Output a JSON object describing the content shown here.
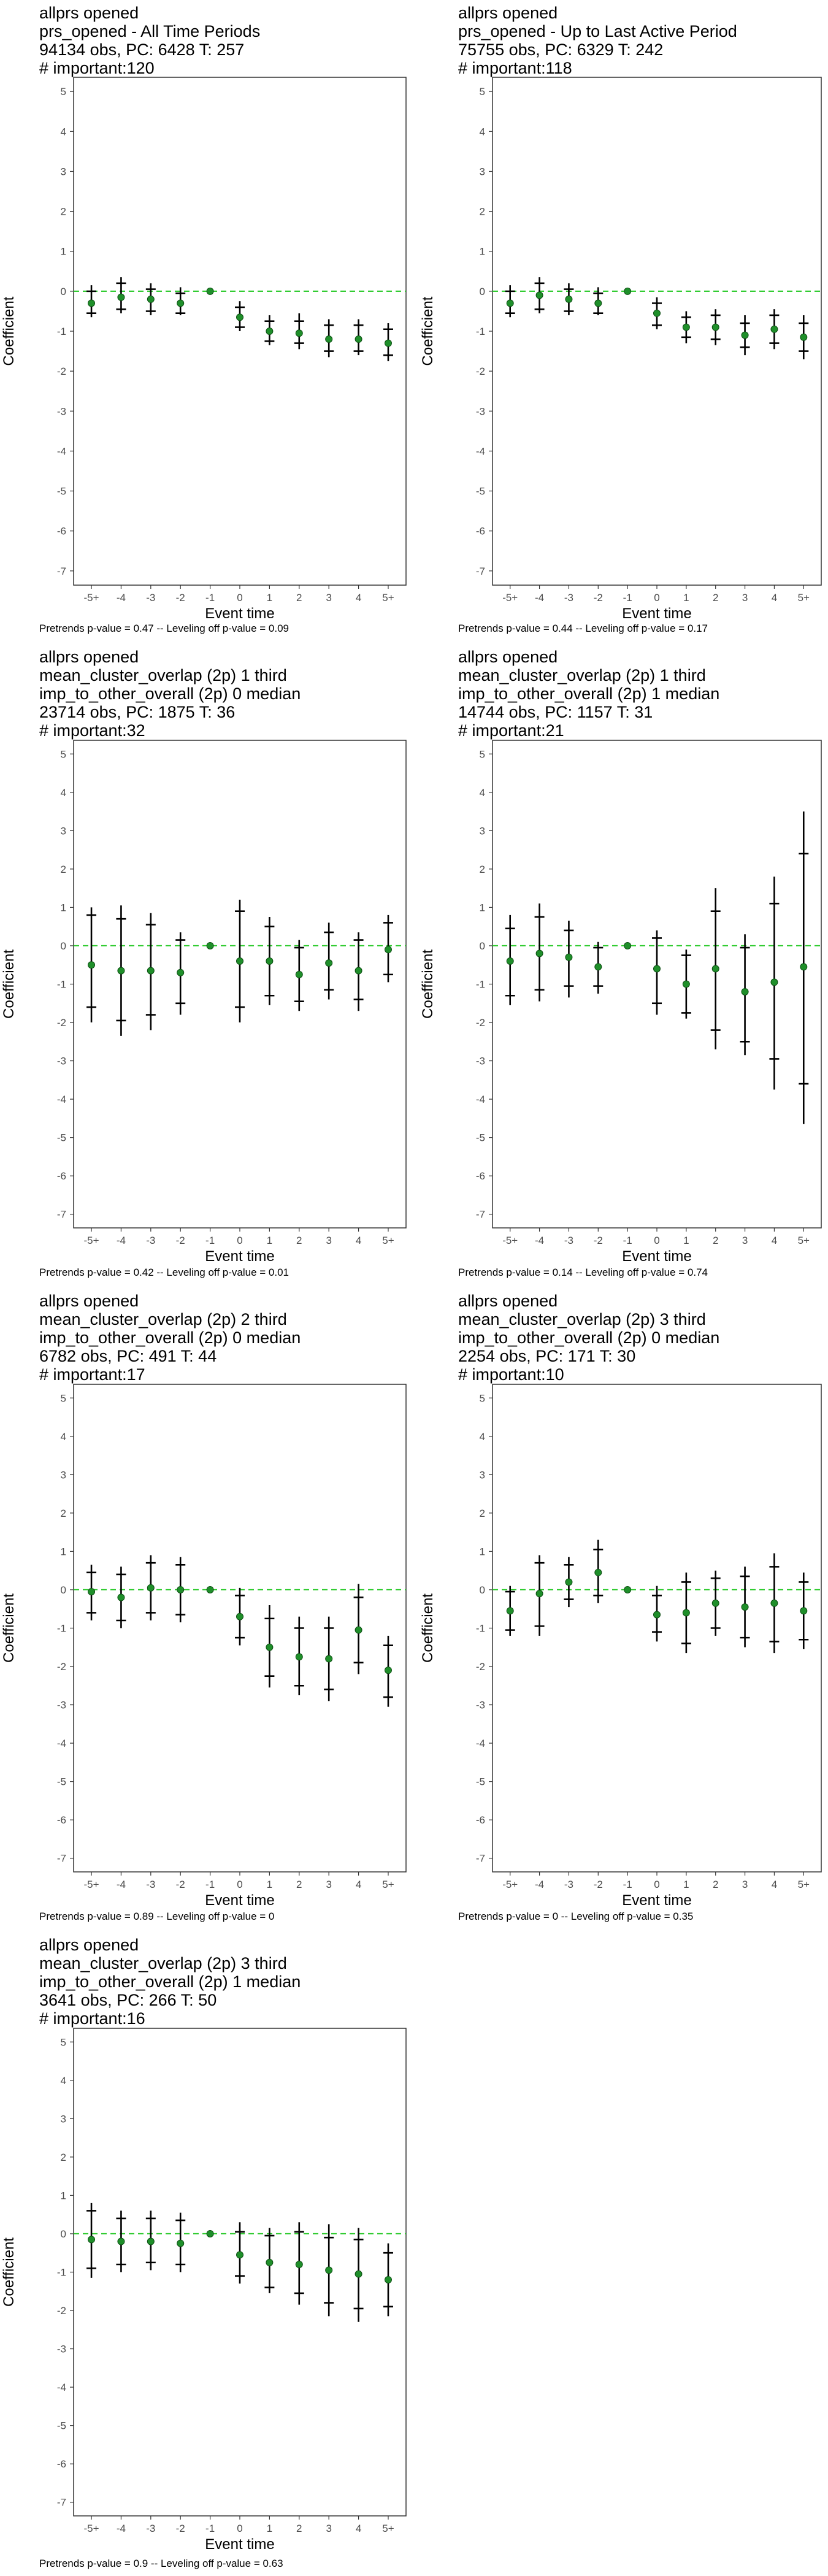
{
  "colors": {
    "point": "#1f8f2a",
    "ci_line": "#000000",
    "zero_line": "#33cc33",
    "panel_border": "#333333",
    "tick_text": "#4d4d4d"
  },
  "chart_data": [
    {
      "type": "scatter",
      "title": [
        " allprs opened",
        "prs_opened - All Time Periods",
        "94134 obs, PC: 6428 T: 257",
        "# important:120"
      ],
      "xlabel": "Event time",
      "ylabel": "Coefficient",
      "categories": [
        "-5+",
        "-4",
        "-3",
        "-2",
        "-1",
        "0",
        "1",
        "2",
        "3",
        "4",
        "5+"
      ],
      "yticks": [
        5,
        4,
        3,
        2,
        1,
        0,
        -1,
        -2,
        -3,
        -4,
        -5,
        -6,
        -7
      ],
      "ylim": [
        -7,
        5
      ],
      "reference_line": 0,
      "estimate": [
        -0.3,
        -0.15,
        -0.2,
        -0.3,
        0,
        -0.65,
        -1.0,
        -1.05,
        -1.2,
        -1.2,
        -1.3
      ],
      "ci_outer_low": [
        -0.65,
        -0.55,
        -0.6,
        -0.6,
        0,
        -1.0,
        -1.35,
        -1.45,
        -1.65,
        -1.6,
        -1.75
      ],
      "ci_outer_high": [
        0.15,
        0.35,
        0.2,
        0.1,
        0,
        -0.25,
        -0.6,
        -0.55,
        -0.7,
        -0.7,
        -0.8
      ],
      "ci_inner_low": [
        -0.55,
        -0.45,
        -0.5,
        -0.55,
        0,
        -0.9,
        -1.25,
        -1.3,
        -1.5,
        -1.5,
        -1.6
      ],
      "ci_inner_high": [
        0.0,
        0.2,
        0.05,
        -0.05,
        0,
        -0.4,
        -0.75,
        -0.75,
        -0.85,
        -0.85,
        -0.95
      ],
      "footer": {
        "prefix": "Pretrends p-value = ",
        "pretrends": "0.47",
        "middle": " -- Leveling off p-value = ",
        "leveling": "0.09"
      }
    },
    {
      "type": "scatter",
      "title": [
        " allprs opened",
        "prs_opened - Up to Last Active Period",
        "75755 obs, PC: 6329 T: 242",
        "# important:118"
      ],
      "xlabel": "Event time",
      "ylabel": "Coefficient",
      "categories": [
        "-5+",
        "-4",
        "-3",
        "-2",
        "-1",
        "0",
        "1",
        "2",
        "3",
        "4",
        "5+"
      ],
      "yticks": [
        5,
        4,
        3,
        2,
        1,
        0,
        -1,
        -2,
        -3,
        -4,
        -5,
        -6,
        -7
      ],
      "ylim": [
        -7,
        5
      ],
      "reference_line": 0,
      "estimate": [
        -0.3,
        -0.1,
        -0.2,
        -0.3,
        0,
        -0.55,
        -0.9,
        -0.9,
        -1.1,
        -0.95,
        -1.15
      ],
      "ci_outer_low": [
        -0.65,
        -0.55,
        -0.6,
        -0.6,
        0,
        -0.95,
        -1.3,
        -1.35,
        -1.6,
        -1.45,
        -1.7
      ],
      "ci_outer_high": [
        0.15,
        0.35,
        0.2,
        0.1,
        0,
        -0.15,
        -0.5,
        -0.45,
        -0.6,
        -0.45,
        -0.6
      ],
      "ci_inner_low": [
        -0.55,
        -0.45,
        -0.5,
        -0.55,
        0,
        -0.85,
        -1.15,
        -1.2,
        -1.4,
        -1.3,
        -1.5
      ],
      "ci_inner_high": [
        0.0,
        0.2,
        0.05,
        -0.05,
        0,
        -0.3,
        -0.65,
        -0.6,
        -0.8,
        -0.6,
        -0.8
      ],
      "footer": {
        "prefix": "Pretrends p-value = ",
        "pretrends": "0.44",
        "middle": " -- Leveling off p-value = ",
        "leveling": "0.17"
      }
    },
    {
      "type": "scatter",
      "title": [
        " allprs opened",
        "mean_cluster_overlap (2p) 1 third",
        "imp_to_other_overall (2p) 0 median",
        "23714 obs, PC: 1875 T: 36",
        "# important:32"
      ],
      "xlabel": "Event time",
      "ylabel": "Coefficient",
      "categories": [
        "-5+",
        "-4",
        "-3",
        "-2",
        "-1",
        "0",
        "1",
        "2",
        "3",
        "4",
        "5+"
      ],
      "yticks": [
        5,
        4,
        3,
        2,
        1,
        0,
        -1,
        -2,
        -3,
        -4,
        -5,
        -6,
        -7
      ],
      "ylim": [
        -7,
        5
      ],
      "reference_line": 0,
      "estimate": [
        -0.5,
        -0.65,
        -0.65,
        -0.7,
        0,
        -0.4,
        -0.4,
        -0.75,
        -0.45,
        -0.65,
        -0.1
      ],
      "ci_outer_low": [
        -2.0,
        -2.35,
        -2.2,
        -1.8,
        0,
        -2.0,
        -1.55,
        -1.7,
        -1.4,
        -1.7,
        -0.95
      ],
      "ci_outer_high": [
        1.0,
        1.05,
        0.85,
        0.35,
        0,
        1.2,
        0.75,
        0.15,
        0.6,
        0.35,
        0.8
      ],
      "ci_inner_low": [
        -1.6,
        -1.95,
        -1.8,
        -1.5,
        0,
        -1.6,
        -1.3,
        -1.45,
        -1.15,
        -1.4,
        -0.75
      ],
      "ci_inner_high": [
        0.8,
        0.7,
        0.55,
        0.15,
        0,
        0.9,
        0.5,
        -0.05,
        0.35,
        0.15,
        0.6
      ],
      "footer": {
        "prefix": "Pretrends p-value = ",
        "pretrends": "0.42",
        "middle": " -- Leveling off p-value = ",
        "leveling": "0.01"
      }
    },
    {
      "type": "scatter",
      "title": [
        " allprs opened",
        "mean_cluster_overlap (2p) 1 third",
        "imp_to_other_overall (2p) 1 median",
        "14744 obs, PC: 1157 T: 31",
        "# important:21"
      ],
      "xlabel": "Event time",
      "ylabel": "Coefficient",
      "categories": [
        "-5+",
        "-4",
        "-3",
        "-2",
        "-1",
        "0",
        "1",
        "2",
        "3",
        "4",
        "5+"
      ],
      "yticks": [
        5,
        4,
        3,
        2,
        1,
        0,
        -1,
        -2,
        -3,
        -4,
        -5,
        -6,
        -7
      ],
      "ylim": [
        -7,
        5
      ],
      "reference_line": 0,
      "estimate": [
        -0.4,
        -0.2,
        -0.3,
        -0.55,
        0,
        -0.6,
        -1.0,
        -0.6,
        -1.2,
        -0.95,
        -0.55
      ],
      "ci_outer_low": [
        -1.55,
        -1.45,
        -1.35,
        -1.25,
        0,
        -1.8,
        -1.9,
        -2.7,
        -2.85,
        -3.75,
        -4.65
      ],
      "ci_outer_high": [
        0.8,
        1.1,
        0.65,
        0.1,
        0,
        0.4,
        -0.1,
        1.5,
        0.3,
        1.8,
        3.5
      ],
      "ci_inner_low": [
        -1.3,
        -1.15,
        -1.05,
        -1.05,
        0,
        -1.5,
        -1.75,
        -2.2,
        -2.5,
        -2.95,
        -3.6
      ],
      "ci_inner_high": [
        0.45,
        0.75,
        0.4,
        -0.05,
        0,
        0.2,
        -0.25,
        0.9,
        -0.05,
        1.1,
        2.4
      ],
      "footer": {
        "prefix": "Pretrends p-value = ",
        "pretrends": "0.14",
        "middle": " -- Leveling off p-value = ",
        "leveling": "0.74"
      }
    },
    {
      "type": "scatter",
      "title": [
        " allprs opened",
        "mean_cluster_overlap (2p) 2 third",
        "imp_to_other_overall (2p) 0 median",
        "6782 obs, PC: 491 T: 44",
        "# important:17"
      ],
      "xlabel": "Event time",
      "ylabel": "Coefficient",
      "categories": [
        "-5+",
        "-4",
        "-3",
        "-2",
        "-1",
        "0",
        "1",
        "2",
        "3",
        "4",
        "5+"
      ],
      "yticks": [
        5,
        4,
        3,
        2,
        1,
        0,
        -1,
        -2,
        -3,
        -4,
        -5,
        -6,
        -7
      ],
      "ylim": [
        -7,
        5
      ],
      "reference_line": 0,
      "estimate": [
        -0.05,
        -0.2,
        0.05,
        0.0,
        0,
        -0.7,
        -1.5,
        -1.75,
        -1.8,
        -1.05,
        -2.1
      ],
      "ci_outer_low": [
        -0.8,
        -1.0,
        -0.8,
        -0.85,
        0,
        -1.45,
        -2.55,
        -2.75,
        -2.9,
        -2.2,
        -3.05
      ],
      "ci_outer_high": [
        0.65,
        0.6,
        0.9,
        0.85,
        0,
        0.05,
        -0.4,
        -0.7,
        -0.7,
        0.15,
        -1.2
      ],
      "ci_inner_low": [
        -0.6,
        -0.8,
        -0.6,
        -0.65,
        0,
        -1.25,
        -2.25,
        -2.5,
        -2.6,
        -1.9,
        -2.8
      ],
      "ci_inner_high": [
        0.45,
        0.4,
        0.7,
        0.65,
        0,
        -0.15,
        -0.75,
        -1.0,
        -1.0,
        -0.2,
        -1.45
      ],
      "footer": {
        "prefix": "Pretrends p-value = ",
        "pretrends": "0.89",
        "middle": " -- Leveling off p-value = ",
        "leveling": "0"
      }
    },
    {
      "type": "scatter",
      "title": [
        " allprs opened",
        "mean_cluster_overlap (2p) 3 third",
        "imp_to_other_overall (2p) 0 median",
        "2254 obs, PC: 171 T: 30",
        "# important:10"
      ],
      "xlabel": "Event time",
      "ylabel": "Coefficient",
      "categories": [
        "-5+",
        "-4",
        "-3",
        "-2",
        "-1",
        "0",
        "1",
        "2",
        "3",
        "4",
        "5+"
      ],
      "yticks": [
        5,
        4,
        3,
        2,
        1,
        0,
        -1,
        -2,
        -3,
        -4,
        -5,
        -6,
        -7
      ],
      "ylim": [
        -7,
        5
      ],
      "reference_line": 0,
      "estimate": [
        -0.55,
        -0.1,
        0.2,
        0.45,
        0,
        -0.65,
        -0.6,
        -0.35,
        -0.45,
        -0.35,
        -0.55
      ],
      "ci_outer_low": [
        -1.2,
        -1.2,
        -0.45,
        -0.35,
        0,
        -1.35,
        -1.65,
        -1.2,
        -1.5,
        -1.65,
        -1.55
      ],
      "ci_outer_high": [
        0.1,
        0.9,
        0.85,
        1.3,
        0,
        0.1,
        0.45,
        0.5,
        0.6,
        0.95,
        0.45
      ],
      "ci_inner_low": [
        -1.05,
        -0.95,
        -0.25,
        -0.15,
        0,
        -1.1,
        -1.4,
        -1.0,
        -1.25,
        -1.35,
        -1.3
      ],
      "ci_inner_high": [
        -0.05,
        0.7,
        0.65,
        1.05,
        0,
        -0.15,
        0.2,
        0.3,
        0.35,
        0.6,
        0.2
      ],
      "footer": {
        "prefix": "Pretrends p-value = ",
        "pretrends": "0",
        "middle": " -- Leveling off p-value = ",
        "leveling": "0.35"
      }
    },
    {
      "type": "scatter",
      "title": [
        " allprs opened",
        "mean_cluster_overlap (2p) 3 third",
        "imp_to_other_overall (2p) 1 median",
        "3641 obs, PC: 266 T: 50",
        "# important:16"
      ],
      "xlabel": "Event time",
      "ylabel": "Coefficient",
      "categories": [
        "-5+",
        "-4",
        "-3",
        "-2",
        "-1",
        "0",
        "1",
        "2",
        "3",
        "4",
        "5+"
      ],
      "yticks": [
        5,
        4,
        3,
        2,
        1,
        0,
        -1,
        -2,
        -3,
        -4,
        -5,
        -6,
        -7
      ],
      "ylim": [
        -7,
        5
      ],
      "reference_line": 0,
      "estimate": [
        -0.15,
        -0.2,
        -0.2,
        -0.25,
        0,
        -0.55,
        -0.75,
        -0.8,
        -0.95,
        -1.05,
        -1.2
      ],
      "ci_outer_low": [
        -1.15,
        -1.0,
        -0.95,
        -1.0,
        0,
        -1.3,
        -1.55,
        -1.85,
        -2.15,
        -2.3,
        -2.15
      ],
      "ci_outer_high": [
        0.8,
        0.6,
        0.6,
        0.55,
        0,
        0.3,
        0.15,
        0.3,
        0.25,
        0.15,
        -0.25
      ],
      "ci_inner_low": [
        -0.9,
        -0.8,
        -0.75,
        -0.8,
        0,
        -1.1,
        -1.4,
        -1.55,
        -1.8,
        -1.95,
        -1.9
      ],
      "ci_inner_high": [
        0.6,
        0.4,
        0.4,
        0.35,
        0,
        0.05,
        -0.05,
        0.05,
        -0.1,
        -0.15,
        -0.5
      ],
      "footer": {
        "prefix": "Pretrends p-value = ",
        "pretrends": "0.9",
        "middle": " -- Leveling off p-value = ",
        "leveling": "0.63"
      }
    }
  ]
}
